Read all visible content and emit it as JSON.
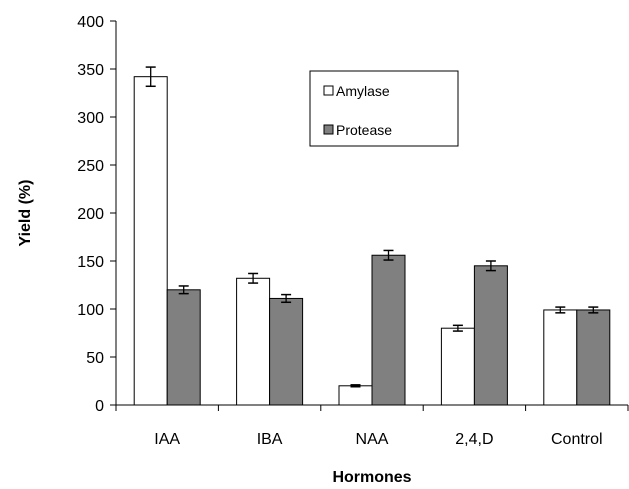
{
  "chart_data": {
    "type": "bar",
    "xlabel": "Hormones",
    "ylabel": "Yield (%)",
    "ylim": [
      0,
      400
    ],
    "yticks": [
      0,
      50,
      100,
      150,
      200,
      250,
      300,
      350,
      400
    ],
    "categories": [
      "IAA",
      "IBA",
      "NAA",
      "2,4,D",
      "Control"
    ],
    "series": [
      {
        "name": "Amylase",
        "values": [
          342,
          132,
          20,
          80,
          99
        ],
        "errors": [
          10,
          5,
          1,
          3,
          3
        ],
        "color": "#ffffff"
      },
      {
        "name": "Protease",
        "values": [
          120,
          111,
          156,
          145,
          99
        ],
        "errors": [
          4,
          4,
          5,
          5,
          3
        ],
        "color": "#808080"
      }
    ],
    "grid": false,
    "legend_position": "top-right",
    "error_bars": true
  }
}
